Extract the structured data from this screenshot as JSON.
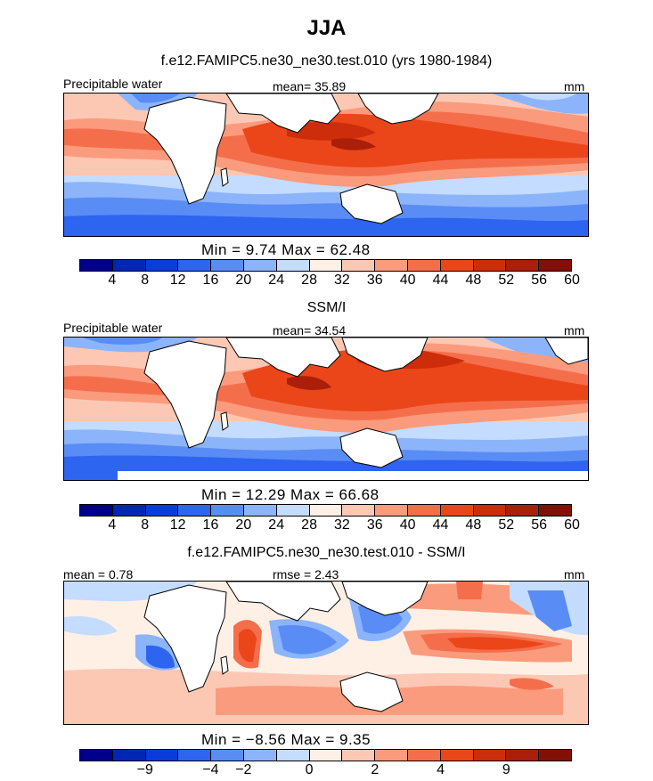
{
  "title": "JJA",
  "colors": [
    "#00008c",
    "#0026b4",
    "#0a3cdc",
    "#2d64f0",
    "#5a8cf5",
    "#8cb4fa",
    "#c3dcff",
    "#fff0e6",
    "#fcc8b4",
    "#fa9b7d",
    "#f56e4b",
    "#ea4619",
    "#cd2d0a",
    "#aa1e0a",
    "#821005"
  ],
  "panel1": {
    "subtitle": "f.e12.FAMIPC5.ne30_ne30.test.010 (yrs 1980-1984)",
    "left_label": "Precipitable water",
    "center_label": "mean=  35.89",
    "right_label": "mm",
    "minmax": "Min =    9.74  Max =   62.48",
    "ticks": [
      "4",
      "8",
      "12",
      "16",
      "20",
      "24",
      "28",
      "32",
      "36",
      "40",
      "44",
      "48",
      "52",
      "56",
      "60"
    ]
  },
  "panel2": {
    "subtitle": "SSM/I",
    "left_label": "Precipitable water",
    "center_label": "mean=  34.54",
    "right_label": "mm",
    "minmax": "Min =   12.29  Max =   66.68",
    "ticks": [
      "4",
      "8",
      "12",
      "16",
      "20",
      "24",
      "28",
      "32",
      "36",
      "40",
      "44",
      "48",
      "52",
      "56",
      "60"
    ]
  },
  "panel3": {
    "subtitle": "f.e12.FAMIPC5.ne30_ne30.test.010 - SSM/I",
    "left_label": "mean =   0.78",
    "center_label": "rmse =   2.43",
    "right_label": "mm",
    "minmax": "Min =   −8.56  Max =    9.35",
    "ticks": [
      "−9",
      "−4",
      "−2",
      "0",
      "2",
      "4",
      "9"
    ]
  }
}
